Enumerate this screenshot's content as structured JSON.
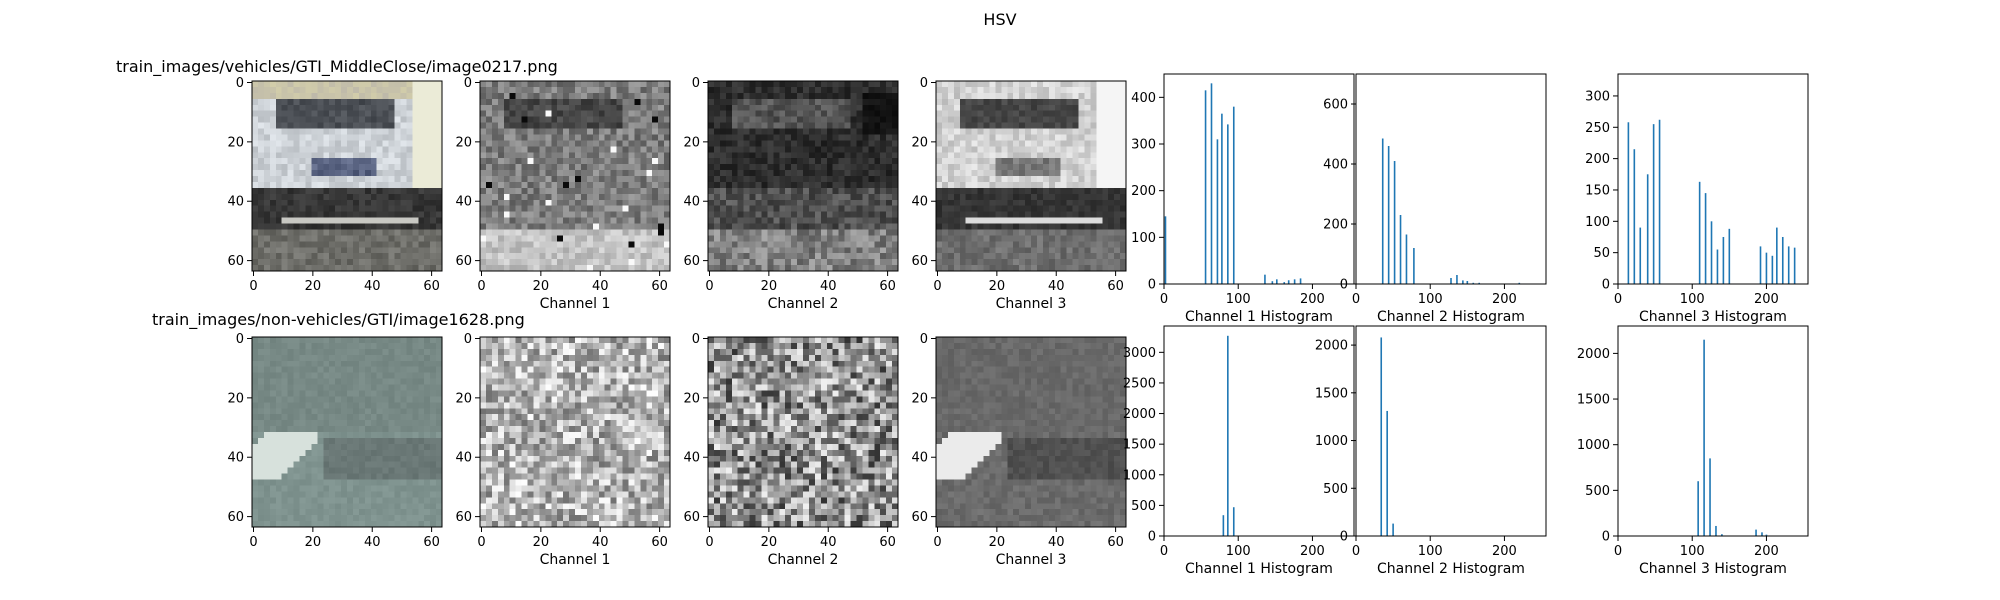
{
  "suptitle": "HSV",
  "rows": [
    {
      "title": "train_images/vehicles/GTI_MiddleClose/image0217.png",
      "panels": [
        {
          "kind": "image",
          "variant": "car_color",
          "xlabel": ""
        },
        {
          "kind": "image",
          "variant": "car_h",
          "xlabel": "Channel 1"
        },
        {
          "kind": "image",
          "variant": "car_s",
          "xlabel": "Channel 2"
        },
        {
          "kind": "image",
          "variant": "car_v",
          "xlabel": "Channel 3"
        }
      ]
    },
    {
      "title": "train_images/non-vehicles/GTI/image1628.png",
      "panels": [
        {
          "kind": "image",
          "variant": "road_color",
          "xlabel": ""
        },
        {
          "kind": "image",
          "variant": "road_h",
          "xlabel": "Channel 1"
        },
        {
          "kind": "image",
          "variant": "road_s",
          "xlabel": "Channel 2"
        },
        {
          "kind": "image",
          "variant": "road_v",
          "xlabel": "Channel 3"
        }
      ]
    }
  ],
  "image_axes": {
    "xticks": [
      0,
      20,
      40,
      60
    ],
    "yticks": [
      0,
      20,
      40,
      60
    ],
    "extent": [
      -0.5,
      63.5
    ]
  },
  "bar_color": "#1f77b4",
  "chart_data": [
    {
      "type": "bar",
      "xlabel": "Channel 1 Histogram",
      "xlim": [
        0,
        256
      ],
      "ylim": [
        0,
        450
      ],
      "xticks": [
        0,
        100,
        200
      ],
      "yticks": [
        0,
        100,
        200,
        300,
        400
      ],
      "x": [
        2,
        56,
        64,
        72,
        78,
        86,
        94,
        136,
        146,
        152,
        162,
        168,
        176,
        184
      ],
      "values": [
        145,
        415,
        430,
        310,
        365,
        342,
        380,
        20,
        6,
        10,
        4,
        8,
        10,
        12
      ]
    },
    {
      "type": "bar",
      "xlabel": "Channel 2 Histogram",
      "xlim": [
        0,
        256
      ],
      "ylim": [
        0,
        700
      ],
      "xticks": [
        0,
        100,
        200
      ],
      "yticks": [
        0,
        200,
        400,
        600
      ],
      "x": [
        36,
        44,
        52,
        60,
        68,
        78,
        128,
        136,
        144,
        150,
        158,
        166,
        220
      ],
      "values": [
        485,
        460,
        410,
        230,
        165,
        120,
        20,
        30,
        12,
        10,
        4,
        4,
        4
      ]
    },
    {
      "type": "bar",
      "xlabel": "Channel 3 Histogram",
      "xlim": [
        0,
        256
      ],
      "ylim": [
        0,
        335
      ],
      "xticks": [
        0,
        100,
        200
      ],
      "yticks": [
        0,
        50,
        100,
        150,
        200,
        250,
        300
      ],
      "x": [
        14,
        22,
        30,
        40,
        48,
        56,
        110,
        118,
        126,
        134,
        142,
        150,
        192,
        200,
        208,
        214,
        222,
        230,
        238
      ],
      "values": [
        258,
        215,
        90,
        175,
        255,
        262,
        163,
        145,
        100,
        55,
        75,
        88,
        60,
        50,
        45,
        90,
        75,
        60,
        58
      ]
    },
    {
      "type": "bar",
      "xlabel": "Channel 1 Histogram",
      "xlim": [
        0,
        256
      ],
      "ylim": [
        0,
        3430
      ],
      "xticks": [
        0,
        100,
        200
      ],
      "yticks": [
        0,
        500,
        1000,
        1500,
        2000,
        2500,
        3000
      ],
      "x": [
        80,
        86,
        94
      ],
      "values": [
        340,
        3270,
        470
      ]
    },
    {
      "type": "bar",
      "xlabel": "Channel 2 Histogram",
      "xlim": [
        0,
        256
      ],
      "ylim": [
        0,
        2200
      ],
      "xticks": [
        0,
        100,
        200
      ],
      "yticks": [
        0,
        500,
        1000,
        1500,
        2000
      ],
      "x": [
        34,
        42,
        50
      ],
      "values": [
        2080,
        1310,
        130
      ]
    },
    {
      "type": "bar",
      "xlabel": "Channel 3 Histogram",
      "xlim": [
        0,
        256
      ],
      "ylim": [
        0,
        2300
      ],
      "xticks": [
        0,
        100,
        200
      ],
      "yticks": [
        0,
        500,
        1000,
        1500,
        2000
      ],
      "x": [
        108,
        116,
        124,
        132,
        140,
        186,
        194,
        200
      ],
      "values": [
        600,
        2150,
        850,
        110,
        20,
        70,
        40,
        15
      ]
    }
  ]
}
